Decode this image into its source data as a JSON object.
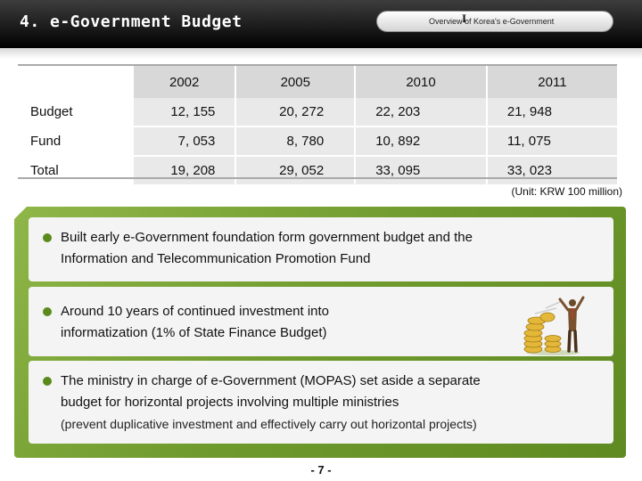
{
  "header": {
    "title": "4. e-Government Budget",
    "section_label": "Overview of Korea's e-Government",
    "section_roman": "I"
  },
  "table": {
    "columns": [
      "2002",
      "2005",
      "2010",
      "2011"
    ],
    "rows": [
      {
        "label": "Budget",
        "values": [
          "12, 155",
          "20, 272",
          "22, 203",
          "21, 948"
        ]
      },
      {
        "label": "Fund",
        "values": [
          "7, 053",
          "8, 780",
          "10, 892",
          "11, 075"
        ]
      },
      {
        "label": "Total",
        "values": [
          "19, 208",
          "29, 052",
          "33, 095",
          "33, 023"
        ]
      }
    ],
    "unit_note": "(Unit: KRW 100 million)"
  },
  "bullets": [
    {
      "lines": [
        "Built early e-Government foundation form government budget and the",
        "Information and Telecommunication Promotion Fund"
      ]
    },
    {
      "lines": [
        "Around 10 years of continued investment into",
        "informatization (1% of State Finance Budget)"
      ]
    },
    {
      "lines": [
        "The ministry in charge of e-Government (MOPAS) set aside a separate",
        "budget for horizontal projects involving multiple ministries",
        "(prevent duplicative investment and effectively carry out horizontal projects)"
      ]
    }
  ],
  "colors": {
    "header": "#1c1c1c",
    "panel_green": "#6f9a2d",
    "bullet": "#5a8a1c"
  },
  "page_number": "- 7 -"
}
